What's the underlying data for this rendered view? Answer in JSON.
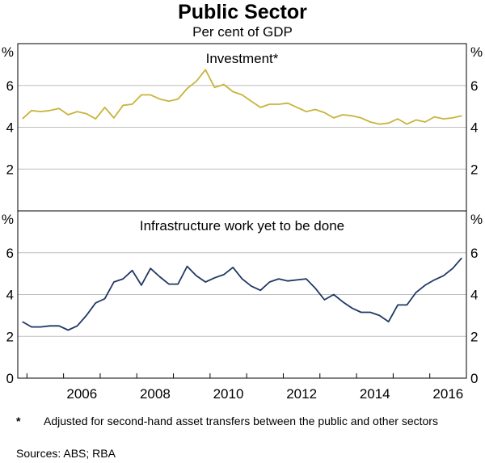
{
  "title": "Public Sector",
  "subtitle": "Per cent of GDP",
  "footnote": {
    "marker": "*",
    "text": "Adjusted for second-hand asset transfers between the public and other sectors"
  },
  "sources": "Sources: ABS; RBA",
  "colors": {
    "investment": "#c8b43c",
    "infrastructure": "#1f3864",
    "axis": "#000000",
    "grid": "#bfbfbf"
  },
  "chart_data": [
    {
      "type": "line",
      "title": "Investment*",
      "ylabel": "%",
      "ylim": [
        0,
        8
      ],
      "yticks": [
        2,
        4,
        6
      ],
      "xlim": [
        2004.75,
        2017.0
      ],
      "series": [
        {
          "name": "Investment",
          "x": [
            2004.875,
            2005.125,
            2005.375,
            2005.625,
            2005.875,
            2006.125,
            2006.375,
            2006.625,
            2006.875,
            2007.125,
            2007.375,
            2007.625,
            2007.875,
            2008.125,
            2008.375,
            2008.625,
            2008.875,
            2009.125,
            2009.375,
            2009.625,
            2009.875,
            2010.125,
            2010.375,
            2010.625,
            2010.875,
            2011.125,
            2011.375,
            2011.625,
            2011.875,
            2012.125,
            2012.375,
            2012.625,
            2012.875,
            2013.125,
            2013.375,
            2013.625,
            2013.875,
            2014.125,
            2014.375,
            2014.625,
            2014.875,
            2015.125,
            2015.375,
            2015.625,
            2015.875,
            2016.125,
            2016.375,
            2016.625,
            2016.875
          ],
          "values": [
            4.4,
            4.8,
            4.75,
            4.8,
            4.9,
            4.6,
            4.75,
            4.65,
            4.4,
            4.95,
            4.45,
            5.05,
            5.1,
            5.55,
            5.55,
            5.35,
            5.25,
            5.35,
            5.85,
            6.2,
            6.75,
            5.9,
            6.05,
            5.7,
            5.55,
            5.25,
            4.95,
            5.1,
            5.1,
            5.15,
            4.95,
            4.75,
            4.85,
            4.7,
            4.45,
            4.6,
            4.55,
            4.45,
            4.25,
            4.15,
            4.2,
            4.4,
            4.15,
            4.35,
            4.25,
            4.5,
            4.4,
            4.45,
            4.55
          ]
        }
      ]
    },
    {
      "type": "line",
      "title": "Infrastructure work yet to be done",
      "ylabel": "%",
      "ylim": [
        0,
        8
      ],
      "yticks": [
        0,
        2,
        4,
        6
      ],
      "xlim": [
        2004.75,
        2017.0
      ],
      "xticks": [
        "2006",
        "2008",
        "2010",
        "2012",
        "2014",
        "2016"
      ],
      "series": [
        {
          "name": "Infrastructure work yet to be done",
          "x": [
            2004.875,
            2005.125,
            2005.375,
            2005.625,
            2005.875,
            2006.125,
            2006.375,
            2006.625,
            2006.875,
            2007.125,
            2007.375,
            2007.625,
            2007.875,
            2008.125,
            2008.375,
            2008.625,
            2008.875,
            2009.125,
            2009.375,
            2009.625,
            2009.875,
            2010.125,
            2010.375,
            2010.625,
            2010.875,
            2011.125,
            2011.375,
            2011.625,
            2011.875,
            2012.125,
            2012.375,
            2012.625,
            2012.875,
            2013.125,
            2013.375,
            2013.625,
            2013.875,
            2014.125,
            2014.375,
            2014.625,
            2014.875,
            2015.125,
            2015.375,
            2015.625,
            2015.875,
            2016.125,
            2016.375,
            2016.625,
            2016.875
          ],
          "values": [
            2.7,
            2.45,
            2.45,
            2.5,
            2.5,
            2.3,
            2.5,
            3.0,
            3.6,
            3.8,
            4.6,
            4.75,
            5.15,
            4.45,
            5.25,
            4.85,
            4.5,
            4.5,
            5.35,
            4.9,
            4.6,
            4.8,
            4.95,
            5.3,
            4.75,
            4.4,
            4.2,
            4.6,
            4.75,
            4.65,
            4.7,
            4.75,
            4.3,
            3.75,
            4.0,
            3.65,
            3.35,
            3.15,
            3.15,
            3.0,
            2.7,
            3.5,
            3.5,
            4.1,
            4.45,
            4.7,
            4.9,
            5.25,
            5.75
          ]
        }
      ]
    }
  ]
}
